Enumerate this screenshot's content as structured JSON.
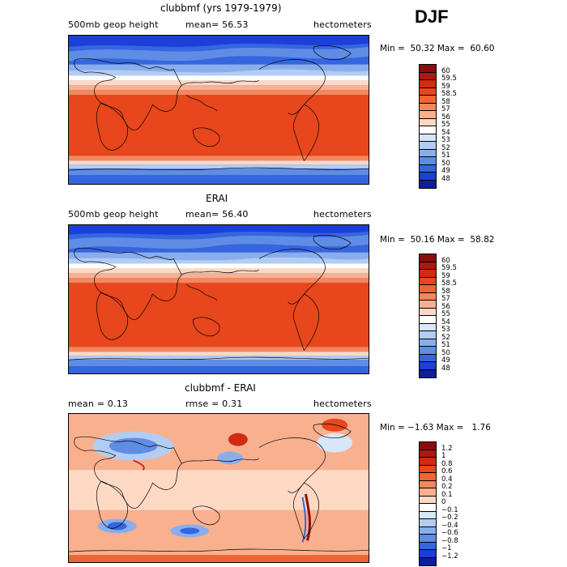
{
  "season": "DJF",
  "panels": [
    {
      "id": "model",
      "title": "clubbmf (yrs 1979-1979)",
      "left_label": "500mb geop height",
      "mid_label": "mean=  56.53",
      "units": "hectometers",
      "min": "50.32",
      "max": "60.60",
      "colorbar": {
        "levels": [
          "60",
          "59.5",
          "59",
          "58.5",
          "58",
          "57",
          "56",
          "55",
          "54",
          "53",
          "52",
          "51",
          "50",
          "49",
          "48"
        ],
        "colors": [
          "#8b0d0d",
          "#b0180f",
          "#d32a12",
          "#e8461c",
          "#f06434",
          "#f5875c",
          "#f9b08f",
          "#fdd9c4",
          "#ffffff",
          "#d7e6f8",
          "#b3ccf2",
          "#8aaeec",
          "#5f8de5",
          "#3566df",
          "#1b3fd8",
          "#0d1da0"
        ]
      }
    },
    {
      "id": "obs",
      "title": "ERAI",
      "left_label": "500mb geop height",
      "mid_label": "mean=  56.40",
      "units": "hectometers",
      "min": "50.16",
      "max": "58.82",
      "colorbar": {
        "levels": [
          "60",
          "59.5",
          "59",
          "58.5",
          "58",
          "57",
          "56",
          "55",
          "54",
          "53",
          "52",
          "51",
          "50",
          "49",
          "48"
        ],
        "colors": [
          "#8b0d0d",
          "#b0180f",
          "#d32a12",
          "#e8461c",
          "#f06434",
          "#f5875c",
          "#f9b08f",
          "#fdd9c4",
          "#ffffff",
          "#d7e6f8",
          "#b3ccf2",
          "#8aaeec",
          "#5f8de5",
          "#3566df",
          "#1b3fd8",
          "#0d1da0"
        ]
      }
    },
    {
      "id": "diff",
      "title": "clubbmf - ERAI",
      "left_label": "mean =   0.13",
      "mid_label": "rmse =   0.31",
      "units": "hectometers",
      "min": "−1.63",
      "max": "1.76",
      "colorbar": {
        "levels": [
          "1.2",
          "1",
          "0.8",
          "0.6",
          "0.4",
          "0.2",
          "0.1",
          "0",
          "−0.1",
          "−0.2",
          "−0.4",
          "−0.6",
          "−0.8",
          "−1",
          "−1.2"
        ],
        "colors": [
          "#8b0d0d",
          "#b0180f",
          "#d32a12",
          "#e8461c",
          "#f06434",
          "#f5875c",
          "#f9b08f",
          "#fdd9c4",
          "#ffffff",
          "#d7e6f8",
          "#b3ccf2",
          "#8aaeec",
          "#5f8de5",
          "#3566df",
          "#1b3fd8",
          "#0d1da0"
        ]
      }
    }
  ]
}
